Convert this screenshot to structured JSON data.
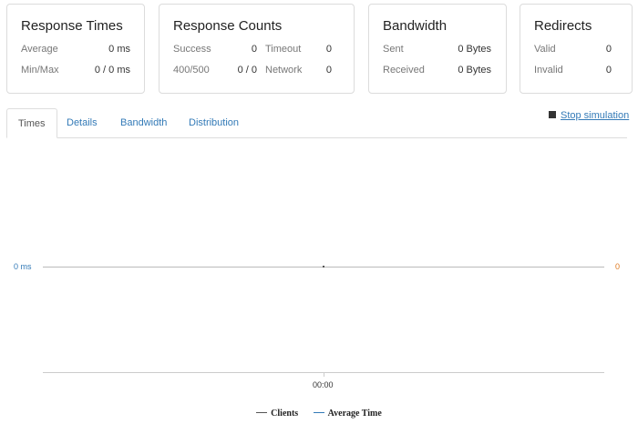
{
  "cards": {
    "response_times": {
      "title": "Response Times",
      "average_label": "Average",
      "average_value": "0 ms",
      "minmax_label": "Min/Max",
      "minmax_value": "0 / 0 ms"
    },
    "response_counts": {
      "title": "Response Counts",
      "success_label": "Success",
      "success_value": "0",
      "timeout_label": "Timeout",
      "timeout_value": "0",
      "err_label": "400/500",
      "err_value": "0 / 0",
      "network_label": "Network",
      "network_value": "0"
    },
    "bandwidth": {
      "title": "Bandwidth",
      "sent_label": "Sent",
      "sent_value": "0 Bytes",
      "received_label": "Received",
      "received_value": "0 Bytes"
    },
    "redirects": {
      "title": "Redirects",
      "valid_label": "Valid",
      "valid_value": "0",
      "invalid_label": "Invalid",
      "invalid_value": "0"
    }
  },
  "tabs": [
    "Times",
    "Details",
    "Bandwidth",
    "Distribution"
  ],
  "active_tab": "Times",
  "stop_label": "Stop simulation",
  "chart_data": {
    "type": "line",
    "x": [
      "00:00"
    ],
    "series": [
      {
        "name": "Clients",
        "values": [
          0
        ],
        "color": "#555555",
        "axis": "right"
      },
      {
        "name": "Average Time",
        "values": [
          0
        ],
        "color": "#337ab7",
        "axis": "left"
      }
    ],
    "y_left_tick": "0 ms",
    "y_right_tick": "0",
    "x_tick": "00:00",
    "legend": "bottom",
    "grid": false
  },
  "colors": {
    "link": "#337ab7",
    "right_axis": "#e07b21",
    "border": "#dcdcdc"
  }
}
